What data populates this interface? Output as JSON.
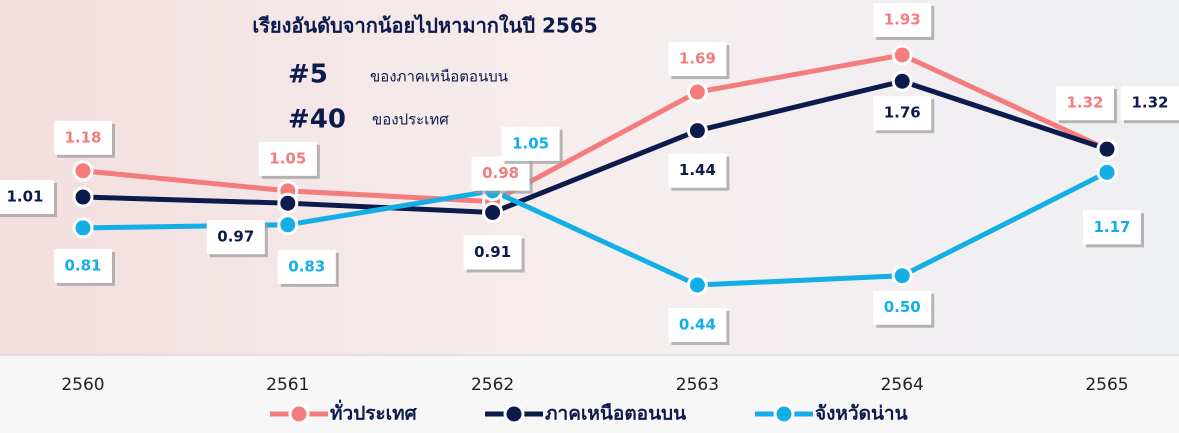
{
  "chart_data": {
    "type": "line",
    "title": "เรียงอันดับจากน้อยไปหามากในปี 2565",
    "annotations": [
      "#5",
      "ของภาคเหนือตอนบน",
      "#40",
      "ของประเทศ"
    ],
    "categories": [
      "2560",
      "2561",
      "2562",
      "2563",
      "2564",
      "2565"
    ],
    "series": [
      {
        "name": "ทั่วประเทศ",
        "color": "#f47c7c",
        "values": [
          1.18,
          1.05,
          0.98,
          1.69,
          1.93,
          1.32
        ]
      },
      {
        "name": "ภาคเหนือตอนบน",
        "color": "#0d1b4c",
        "values": [
          1.01,
          0.97,
          0.91,
          1.44,
          1.76,
          1.32
        ]
      },
      {
        "name": "จังหวัดน่าน",
        "color": "#14aee6",
        "values": [
          0.81,
          0.83,
          1.05,
          0.44,
          0.5,
          1.17
        ],
        "value_labels": [
          "0.81",
          "0.83",
          "1.05",
          "0.44",
          "0.50",
          "1.17"
        ]
      }
    ]
  }
}
